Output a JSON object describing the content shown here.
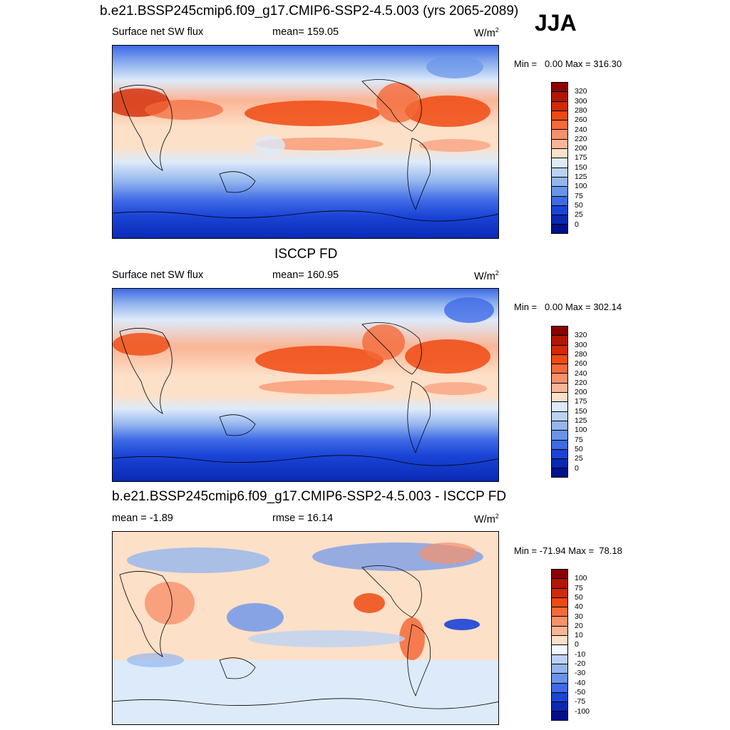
{
  "season": "JJA",
  "panels": [
    {
      "title": "b.e21.BSSP245cmip6.f09_g17.CMIP6-SSP2-4.5.003 (yrs 2065-2089)",
      "left_label": "Surface net SW flux",
      "center_label": "mean= 159.05",
      "units_base": "W/m",
      "units_exp": "2",
      "min_label": "Min =",
      "min_value": "0.00",
      "max_label": "Max =",
      "max_value": "316.30"
    },
    {
      "title": "ISCCP FD",
      "left_label": "Surface net SW flux",
      "center_label": "mean= 160.95",
      "units_base": "W/m",
      "units_exp": "2",
      "min_label": "Min =",
      "min_value": "0.00",
      "max_label": "Max =",
      "max_value": "302.14"
    },
    {
      "title": "b.e21.BSSP245cmip6.f09_g17.CMIP6-SSP2-4.5.003 - ISCCP FD",
      "left_label": "mean =  -1.89",
      "center_label": "rmse =  16.14",
      "units_base": "W/m",
      "units_exp": "2",
      "min_label": "Min =",
      "min_value": "-71.94",
      "max_label": "Max =",
      "max_value": "78.18"
    }
  ],
  "colorbars": {
    "absolute": {
      "labels": [
        "320",
        "300",
        "280",
        "260",
        "240",
        "220",
        "200",
        "175",
        "150",
        "125",
        "100",
        "75",
        "50",
        "25",
        "0"
      ],
      "colors": [
        "#8b0000",
        "#b31600",
        "#d22a05",
        "#ee4a12",
        "#f46a3a",
        "#f8906a",
        "#fab596",
        "#fde0c8",
        "#ddeafa",
        "#bcd2f4",
        "#94b6ee",
        "#6a94ea",
        "#3e6ae6",
        "#1a44d6",
        "#0a28b4",
        "#00108a"
      ]
    },
    "difference": {
      "labels": [
        "100",
        "75",
        "50",
        "40",
        "30",
        "20",
        "10",
        "0",
        "-10",
        "-20",
        "-30",
        "-40",
        "-50",
        "-75",
        "-100"
      ],
      "colors": [
        "#8b0000",
        "#b31600",
        "#d22a05",
        "#ee4a12",
        "#f46a3a",
        "#f8906a",
        "#fab596",
        "#fde0c8",
        "#f4f8ff",
        "#bcd2f4",
        "#94b6ee",
        "#6a94ea",
        "#3e6ae6",
        "#1a44d6",
        "#0a28b4",
        "#00108a"
      ]
    }
  }
}
